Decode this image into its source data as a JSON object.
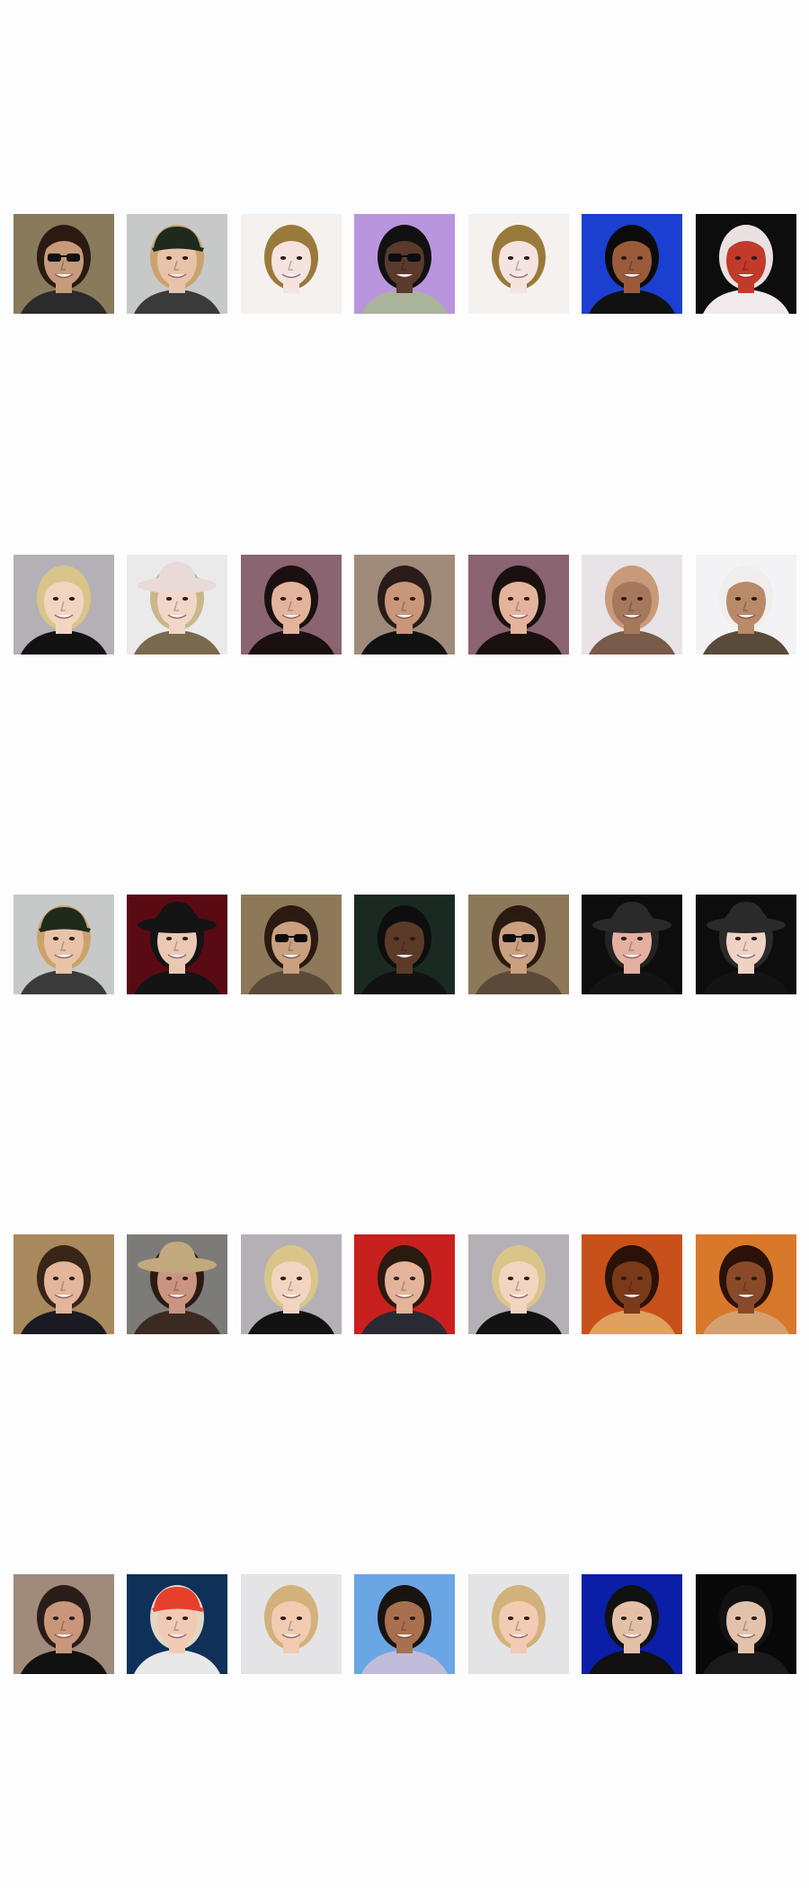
{
  "grid": {
    "rows": [
      {
        "tiles": [
          {
            "label": "man-dark-sunglasses",
            "bg": "#8a7a5c",
            "skin": "#c69a7a",
            "hair": "#2b1a10",
            "acc": "sunglasses",
            "accColor": "#111111",
            "cloth": "#2b2b2b"
          },
          {
            "label": "man-cap",
            "bg": "#c7c9c8",
            "skin": "#e9c3a8",
            "hair": "#caa36c",
            "acc": "cap",
            "accColor": "#1e2a1c",
            "cloth": "#3a3a3a"
          },
          {
            "label": "woman-blonde-curls",
            "bg": "#f4f1ee",
            "skin": "#f5e3df",
            "hair": "#9a7a3b",
            "acc": "none",
            "accColor": "#000000",
            "cloth": "#f4f1ee"
          },
          {
            "label": "man-shades-purple",
            "bg": "#b995de",
            "skin": "#5a3a2a",
            "hair": "#111111",
            "acc": "sunglasses",
            "accColor": "#0b0b15",
            "cloth": "#a9b49a"
          },
          {
            "label": "woman-blonde-curls-2",
            "bg": "#f4f1ee",
            "skin": "#f5e3df",
            "hair": "#9a7a3b",
            "acc": "none",
            "accColor": "#000000",
            "cloth": "#f4f1ee"
          },
          {
            "label": "generated-1",
            "bg": "#1b3fd0",
            "skin": "#9b5a3a",
            "hair": "#0b0b0b",
            "acc": "none",
            "accColor": "#000000",
            "cloth": "#111111"
          },
          {
            "label": "generated-2",
            "bg": "#0d0d0d",
            "skin": "#c23a2a",
            "hair": "#e9e1e1",
            "acc": "none",
            "accColor": "#000000",
            "cloth": "#f0eaea"
          }
        ]
      },
      {
        "tiles": [
          {
            "label": "boy-blonde",
            "bg": "#b5b0b6",
            "skin": "#f2d5c0",
            "hair": "#d9c58a",
            "acc": "none",
            "accColor": "#000000",
            "cloth": "#121212"
          },
          {
            "label": "woman-hat",
            "bg": "#eaeaea",
            "skin": "#f1d7c8",
            "hair": "#c9b78a",
            "acc": "hat",
            "accColor": "#e9d9d9",
            "cloth": "#7a6a4d"
          },
          {
            "label": "woman-dark-hair",
            "bg": "#8a6470",
            "skin": "#e4b39b",
            "hair": "#1a1010",
            "acc": "none",
            "accColor": "#000000",
            "cloth": "#1a1010"
          },
          {
            "label": "bald-man-mustache",
            "bg": "#a08b7a",
            "skin": "#c9967a",
            "hair": "#2a1c18",
            "acc": "none",
            "accColor": "#000000",
            "cloth": "#111111"
          },
          {
            "label": "woman-dark-hair-2",
            "bg": "#8a6470",
            "skin": "#e4b39b",
            "hair": "#1a1010",
            "acc": "none",
            "accColor": "#000000",
            "cloth": "#1a1010"
          },
          {
            "label": "generated-3",
            "bg": "#e7e3e7",
            "skin": "#a5785c",
            "hair": "#c99a7a",
            "acc": "none",
            "accColor": "#000000",
            "cloth": "#7a5a48"
          },
          {
            "label": "generated-4",
            "bg": "#f3f3f5",
            "skin": "#b88a6a",
            "hair": "#f0eded",
            "acc": "none",
            "accColor": "#000000",
            "cloth": "#5a4a3a"
          }
        ]
      },
      {
        "tiles": [
          {
            "label": "man-cap-2",
            "bg": "#c7c9c8",
            "skin": "#e9c3a8",
            "hair": "#caa36c",
            "acc": "cap",
            "accColor": "#1e2a1c",
            "cloth": "#3a3a3a"
          },
          {
            "label": "woman-black-hat",
            "bg": "#5a0a12",
            "skin": "#ebc8b4",
            "hair": "#141414",
            "acc": "hat",
            "accColor": "#141414",
            "cloth": "#141414"
          },
          {
            "label": "man-sunglasses-2",
            "bg": "#8d785a",
            "skin": "#c9a080",
            "hair": "#2b1a10",
            "acc": "sunglasses",
            "accColor": "#0d0d0d",
            "cloth": "#5b4a3a"
          },
          {
            "label": "man-smile-dark",
            "bg": "#1a2a22",
            "skin": "#5c3a28",
            "hair": "#0e0e0e",
            "acc": "none",
            "accColor": "#000000",
            "cloth": "#121212"
          },
          {
            "label": "man-sunglasses-3",
            "bg": "#8d785a",
            "skin": "#c9a080",
            "hair": "#2b1a10",
            "acc": "sunglasses",
            "accColor": "#0d0d0d",
            "cloth": "#5b4a3a"
          },
          {
            "label": "generated-5",
            "bg": "#0d0d0d",
            "skin": "#e4b0a0",
            "hair": "#232323",
            "acc": "hat",
            "accColor": "#2a2a2a",
            "cloth": "#141414"
          },
          {
            "label": "generated-6",
            "bg": "#0d0d0d",
            "skin": "#f0d2c4",
            "hair": "#2a2a2a",
            "acc": "hat",
            "accColor": "#2a2a2a",
            "cloth": "#141414"
          }
        ]
      },
      {
        "tiles": [
          {
            "label": "man-brown-hair",
            "bg": "#a98a5e",
            "skin": "#e3b59a",
            "hair": "#3a2418",
            "acc": "none",
            "accColor": "#000000",
            "cloth": "#1a1a22"
          },
          {
            "label": "woman-straw-hat",
            "bg": "#7d7b78",
            "skin": "#c99580",
            "hair": "#2a1a12",
            "acc": "hat",
            "accColor": "#c2a97e",
            "cloth": "#3a2a22"
          },
          {
            "label": "boy-blonde-2",
            "bg": "#b5b0b6",
            "skin": "#f2d5c0",
            "hair": "#d9c58a",
            "acc": "none",
            "accColor": "#000000",
            "cloth": "#121212"
          },
          {
            "label": "man-red-bg",
            "bg": "#c8201e",
            "skin": "#e3b49a",
            "hair": "#2a1a10",
            "acc": "none",
            "accColor": "#000000",
            "cloth": "#2a2a34"
          },
          {
            "label": "boy-blonde-3",
            "bg": "#b5b0b6",
            "skin": "#f2d5c0",
            "hair": "#d9c58a",
            "acc": "none",
            "accColor": "#000000",
            "cloth": "#121212"
          },
          {
            "label": "generated-7",
            "bg": "#c8501a",
            "skin": "#7a3a1a",
            "hair": "#2a1208",
            "acc": "none",
            "accColor": "#000000",
            "cloth": "#e0a060"
          },
          {
            "label": "generated-8",
            "bg": "#d8782a",
            "skin": "#8a4a2a",
            "hair": "#2a1208",
            "acc": "none",
            "accColor": "#000000",
            "cloth": "#d4a070"
          }
        ]
      },
      {
        "tiles": [
          {
            "label": "bald-man-mustache-2",
            "bg": "#a08b7a",
            "skin": "#c9967a",
            "hair": "#2a1c18",
            "acc": "none",
            "accColor": "#000000",
            "cloth": "#111111"
          },
          {
            "label": "woman-red-visor",
            "bg": "#0f3058",
            "skin": "#f1c9b5",
            "hair": "#e2d6c5",
            "acc": "cap",
            "accColor": "#e6402c",
            "cloth": "#e8e8e8"
          },
          {
            "label": "woman-blonde",
            "bg": "#e4e4e6",
            "skin": "#f2cbb2",
            "hair": "#d2b27a",
            "acc": "none",
            "accColor": "#000000",
            "cloth": "#e4e4e6"
          },
          {
            "label": "bald-man-blue-bg",
            "bg": "#6aa6e4",
            "skin": "#a8704e",
            "hair": "#1a1410",
            "acc": "none",
            "accColor": "#000000",
            "cloth": "#c0bcd8"
          },
          {
            "label": "woman-blonde-2",
            "bg": "#e4e4e6",
            "skin": "#f2cbb2",
            "hair": "#d2b27a",
            "acc": "none",
            "accColor": "#000000",
            "cloth": "#e4e4e6"
          },
          {
            "label": "generated-9",
            "bg": "#0a1ea8",
            "skin": "#e4c0a8",
            "hair": "#111111",
            "acc": "none",
            "accColor": "#000000",
            "cloth": "#111111"
          },
          {
            "label": "generated-10",
            "bg": "#080808",
            "skin": "#e2c2aa",
            "hair": "#121212",
            "acc": "none",
            "accColor": "#000000",
            "cloth": "#1a1a1a"
          }
        ]
      }
    ]
  }
}
